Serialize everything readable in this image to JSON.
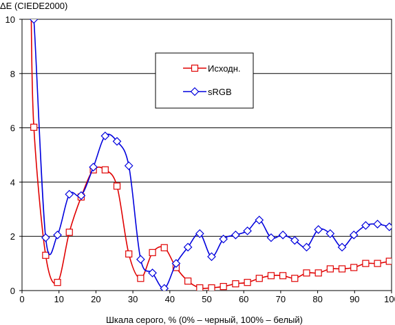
{
  "chart_data": {
    "type": "line",
    "ylabel": "ΔE (CIEDE2000)",
    "xlabel": "Шкала серого, % (0% – черный, 100% – белый)",
    "xlim": [
      0,
      100
    ],
    "ylim": [
      0,
      10
    ],
    "xticks": [
      "0",
      "10",
      "20",
      "30",
      "40",
      "50",
      "60",
      "70",
      "80",
      "90",
      "100"
    ],
    "yticks": [
      "0",
      "2",
      "4",
      "6",
      "8",
      "10"
    ],
    "grid": "horizontal",
    "legend_position": "upper-center",
    "series": [
      {
        "name": "Исходн.",
        "color": "#e00000",
        "marker": "square",
        "x": [
          3.2,
          6.4,
          9.6,
          12.8,
          16.0,
          19.3,
          22.5,
          25.7,
          28.9,
          32.1,
          35.3,
          38.5,
          41.7,
          44.9,
          48.1,
          51.3,
          54.5,
          57.8,
          61.0,
          64.2,
          67.4,
          70.6,
          73.8,
          77.0,
          80.2,
          83.4,
          86.6,
          89.8,
          93.0,
          96.2,
          99.4
        ],
        "y": [
          6.02,
          1.3,
          0.3,
          2.15,
          3.45,
          4.45,
          4.45,
          3.85,
          1.35,
          0.45,
          1.4,
          1.58,
          0.85,
          0.35,
          0.1,
          0.1,
          0.15,
          0.25,
          0.3,
          0.45,
          0.55,
          0.55,
          0.45,
          0.65,
          0.65,
          0.8,
          0.8,
          0.85,
          1.0,
          1.0,
          1.08
        ]
      },
      {
        "name": "sRGB",
        "color": "#0000dd",
        "marker": "diamond",
        "x": [
          3.2,
          6.4,
          9.6,
          12.8,
          16.0,
          19.3,
          22.5,
          25.7,
          28.9,
          32.1,
          35.3,
          38.5,
          41.7,
          44.9,
          48.1,
          51.3,
          54.5,
          57.8,
          61.0,
          64.2,
          67.4,
          70.6,
          73.8,
          77.0,
          80.2,
          83.4,
          86.6,
          89.8,
          93.0,
          96.2,
          99.4
        ],
        "y": [
          10.0,
          1.95,
          2.05,
          3.55,
          3.5,
          4.55,
          5.7,
          5.5,
          4.6,
          1.15,
          0.65,
          0.08,
          1.0,
          1.6,
          2.1,
          1.25,
          1.9,
          2.05,
          2.2,
          2.6,
          1.95,
          2.05,
          1.85,
          1.6,
          2.25,
          2.1,
          1.6,
          2.05,
          2.4,
          2.45,
          2.35
        ]
      }
    ]
  }
}
